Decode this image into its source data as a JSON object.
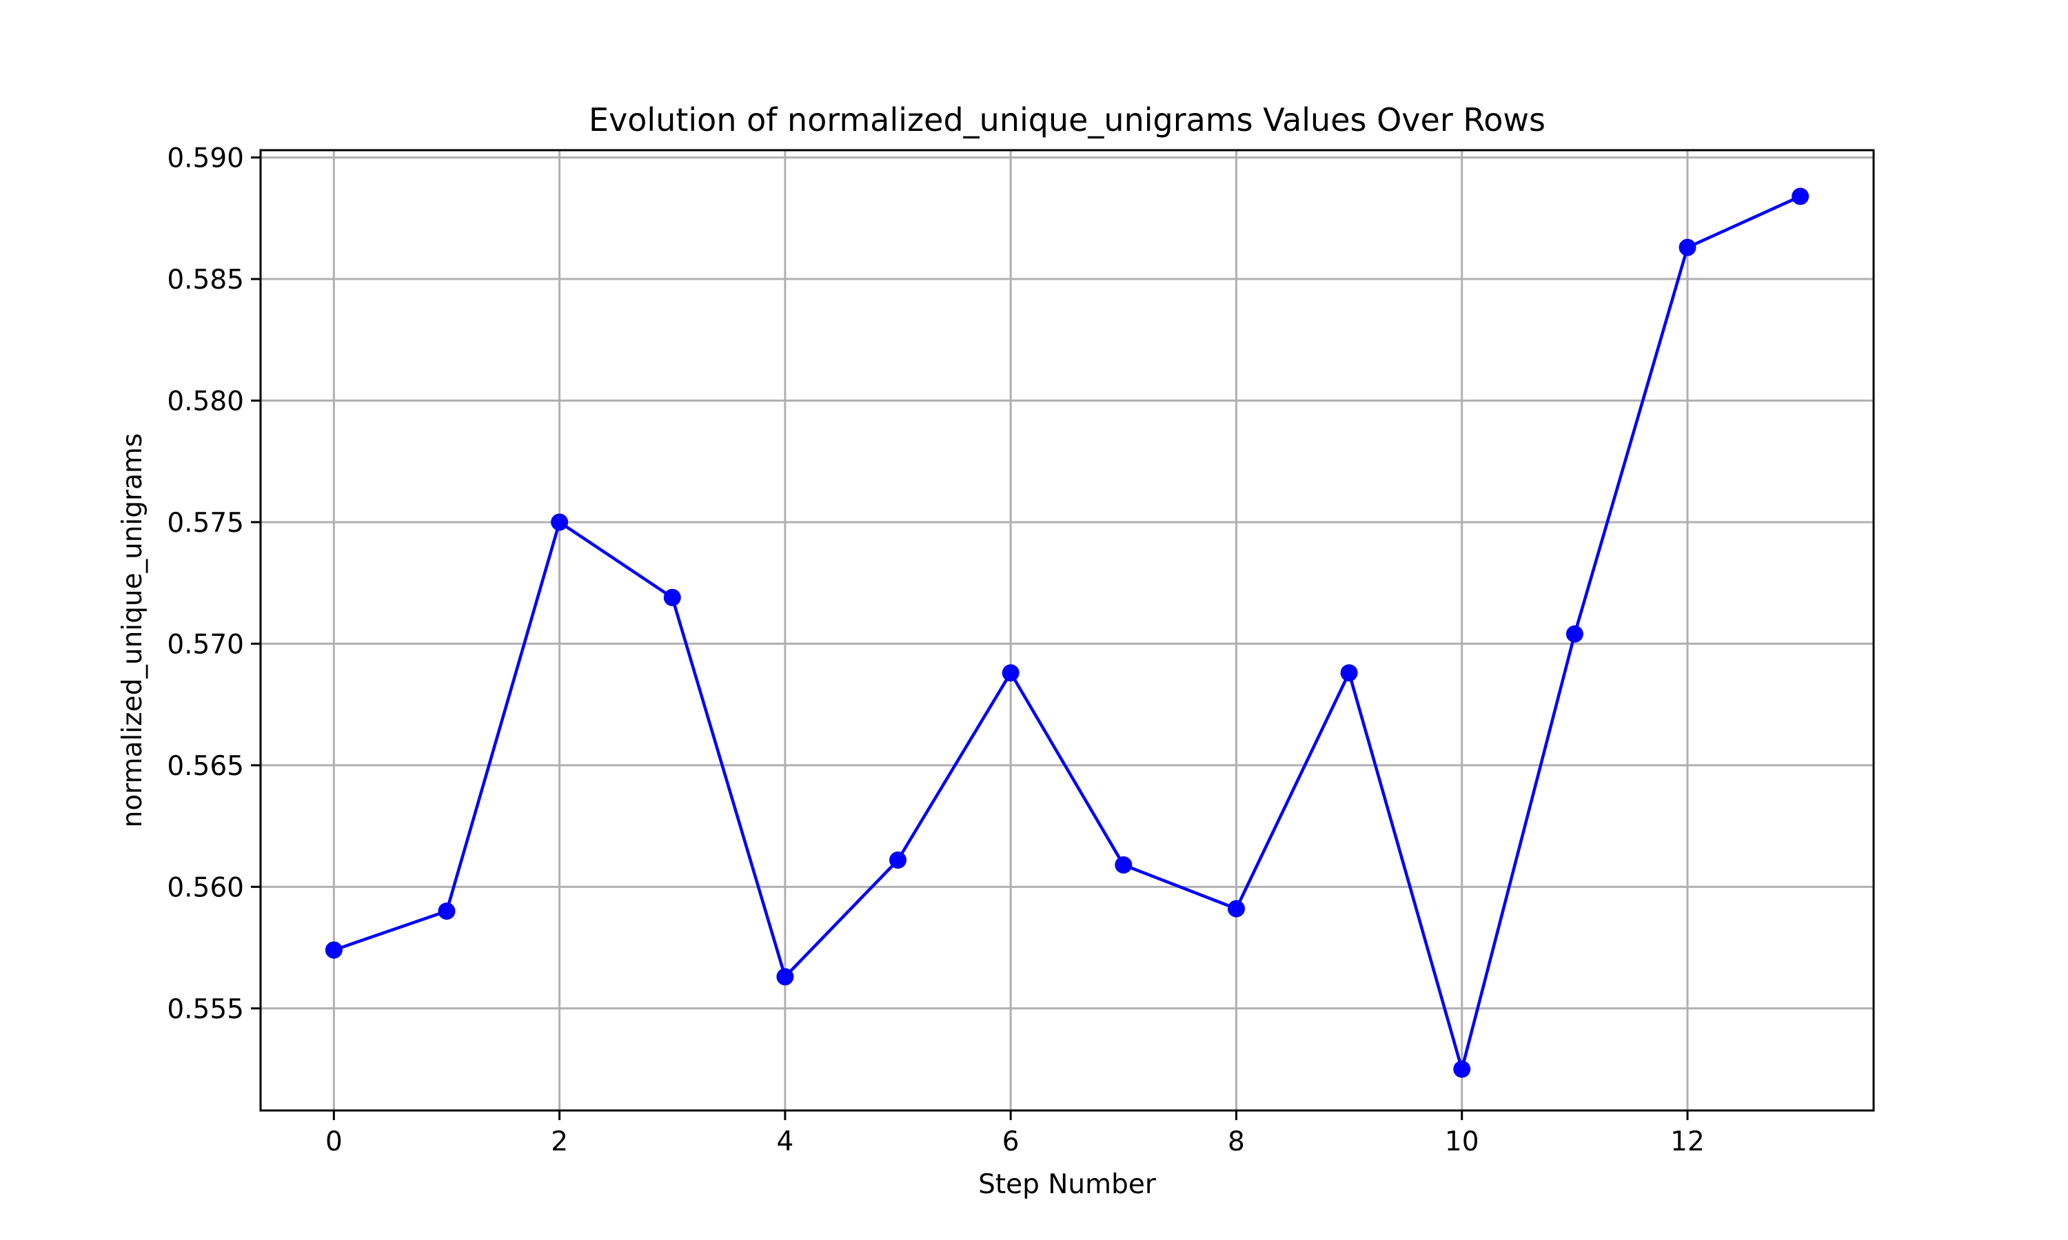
{
  "chart_data": {
    "type": "line",
    "title": "Evolution of normalized_unique_unigrams Values Over Rows",
    "xlabel": "Step Number",
    "ylabel": "normalized_unique_unigrams",
    "xlim": [
      -0.65,
      13.65
    ],
    "ylim": [
      0.5508,
      0.5903
    ],
    "xticks": [
      0,
      2,
      4,
      6,
      8,
      10,
      12
    ],
    "xtick_labels": [
      "0",
      "2",
      "4",
      "6",
      "8",
      "10",
      "12"
    ],
    "yticks": [
      0.555,
      0.56,
      0.565,
      0.57,
      0.575,
      0.58,
      0.585,
      0.59
    ],
    "ytick_labels": [
      "0.555",
      "0.560",
      "0.565",
      "0.570",
      "0.575",
      "0.580",
      "0.585",
      "0.590"
    ],
    "grid": true,
    "color": "#0000ff",
    "marker": "circle",
    "x": [
      0,
      1,
      2,
      3,
      4,
      5,
      6,
      7,
      8,
      9,
      10,
      11,
      12,
      13
    ],
    "values": [
      0.5574,
      0.559,
      0.575,
      0.5719,
      0.5563,
      0.5611,
      0.5688,
      0.5609,
      0.5591,
      0.5688,
      0.5525,
      0.5704,
      0.5863,
      0.5884
    ]
  }
}
